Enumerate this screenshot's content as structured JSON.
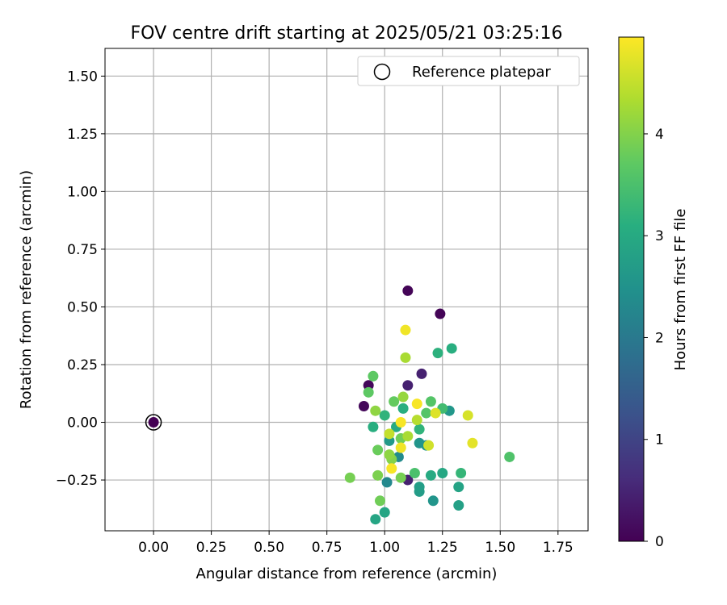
{
  "chart_data": {
    "type": "scatter",
    "title": "FOV centre drift starting at 2025/05/21 03:25:16",
    "xlabel": "Angular distance from reference (arcmin)",
    "ylabel": "Rotation from reference (arcmin)",
    "xlim": [
      -0.21,
      1.88
    ],
    "ylim": [
      -0.47,
      1.62
    ],
    "xticks": [
      0.0,
      0.25,
      0.5,
      0.75,
      1.0,
      1.25,
      1.5,
      1.75
    ],
    "xtick_labels": [
      "0.00",
      "0.25",
      "0.50",
      "0.75",
      "1.00",
      "1.25",
      "1.50",
      "1.75"
    ],
    "yticks": [
      -0.25,
      0.0,
      0.25,
      0.5,
      0.75,
      1.0,
      1.25,
      1.5
    ],
    "ytick_labels": [
      "−0.25",
      "0.00",
      "0.25",
      "0.50",
      "0.75",
      "1.00",
      "1.25",
      "1.50"
    ],
    "grid": true,
    "legend": {
      "position": "top-right",
      "label": "Reference platepar"
    },
    "colorbar": {
      "label": "Hours from first FF file",
      "colormap": "viridis",
      "range": [
        0,
        4.95
      ],
      "ticks": [
        0,
        1,
        2,
        3,
        4
      ],
      "tick_labels": [
        "0",
        "1",
        "2",
        "3",
        "4"
      ]
    },
    "reference_point": {
      "x": 0.0,
      "y": 0.0,
      "c": 0.0
    },
    "points": [
      {
        "x": 1.1,
        "y": 0.57,
        "c": 0.05
      },
      {
        "x": 1.24,
        "y": 0.47,
        "c": 0.05
      },
      {
        "x": 0.93,
        "y": 0.16,
        "c": 0.1
      },
      {
        "x": 0.91,
        "y": 0.07,
        "c": 0.1
      },
      {
        "x": 1.16,
        "y": 0.21,
        "c": 0.45
      },
      {
        "x": 1.1,
        "y": 0.16,
        "c": 0.45
      },
      {
        "x": 1.1,
        "y": -0.25,
        "c": 0.45
      },
      {
        "x": 1.01,
        "y": -0.26,
        "c": 2.3
      },
      {
        "x": 1.06,
        "y": -0.15,
        "c": 2.35
      },
      {
        "x": 1.21,
        "y": -0.34,
        "c": 2.55
      },
      {
        "x": 1.15,
        "y": -0.09,
        "c": 2.55
      },
      {
        "x": 1.18,
        "y": -0.1,
        "c": 2.55
      },
      {
        "x": 1.28,
        "y": 0.05,
        "c": 2.6
      },
      {
        "x": 1.02,
        "y": -0.08,
        "c": 2.65
      },
      {
        "x": 1.15,
        "y": -0.3,
        "c": 2.7
      },
      {
        "x": 1.15,
        "y": -0.28,
        "c": 2.75
      },
      {
        "x": 1.32,
        "y": -0.36,
        "c": 2.8
      },
      {
        "x": 1.32,
        "y": -0.28,
        "c": 2.85
      },
      {
        "x": 1.0,
        "y": -0.39,
        "c": 2.9
      },
      {
        "x": 0.96,
        "y": -0.42,
        "c": 2.9
      },
      {
        "x": 1.25,
        "y": -0.22,
        "c": 2.95
      },
      {
        "x": 1.2,
        "y": -0.23,
        "c": 3.0
      },
      {
        "x": 1.05,
        "y": -0.02,
        "c": 3.0
      },
      {
        "x": 0.95,
        "y": -0.02,
        "c": 3.1
      },
      {
        "x": 1.08,
        "y": 0.06,
        "c": 3.1
      },
      {
        "x": 1.29,
        "y": 0.32,
        "c": 3.1
      },
      {
        "x": 1.23,
        "y": 0.3,
        "c": 3.15
      },
      {
        "x": 1.15,
        "y": -0.03,
        "c": 3.2
      },
      {
        "x": 1.0,
        "y": 0.03,
        "c": 3.2
      },
      {
        "x": 1.33,
        "y": -0.22,
        "c": 3.25
      },
      {
        "x": 1.25,
        "y": 0.06,
        "c": 3.4
      },
      {
        "x": 1.13,
        "y": -0.22,
        "c": 3.5
      },
      {
        "x": 1.54,
        "y": -0.15,
        "c": 3.55
      },
      {
        "x": 1.2,
        "y": 0.09,
        "c": 3.6
      },
      {
        "x": 1.18,
        "y": 0.04,
        "c": 3.6
      },
      {
        "x": 0.95,
        "y": 0.2,
        "c": 3.7
      },
      {
        "x": 0.93,
        "y": 0.13,
        "c": 3.7
      },
      {
        "x": 1.04,
        "y": 0.09,
        "c": 3.75
      },
      {
        "x": 0.97,
        "y": -0.12,
        "c": 3.8
      },
      {
        "x": 1.07,
        "y": -0.07,
        "c": 3.85
      },
      {
        "x": 0.98,
        "y": -0.34,
        "c": 3.85
      },
      {
        "x": 0.85,
        "y": -0.24,
        "c": 3.9
      },
      {
        "x": 1.07,
        "y": -0.24,
        "c": 3.9
      },
      {
        "x": 0.97,
        "y": -0.23,
        "c": 3.95
      },
      {
        "x": 1.03,
        "y": -0.16,
        "c": 4.0
      },
      {
        "x": 1.02,
        "y": -0.14,
        "c": 4.1
      },
      {
        "x": 0.96,
        "y": 0.05,
        "c": 4.1
      },
      {
        "x": 1.08,
        "y": 0.11,
        "c": 4.15
      },
      {
        "x": 1.09,
        "y": 0.28,
        "c": 4.3
      },
      {
        "x": 1.1,
        "y": -0.06,
        "c": 4.3
      },
      {
        "x": 1.14,
        "y": 0.01,
        "c": 4.4
      },
      {
        "x": 1.02,
        "y": -0.05,
        "c": 4.5
      },
      {
        "x": 1.19,
        "y": -0.1,
        "c": 4.6
      },
      {
        "x": 1.36,
        "y": 0.03,
        "c": 4.65
      },
      {
        "x": 1.22,
        "y": 0.04,
        "c": 4.7
      },
      {
        "x": 1.38,
        "y": -0.09,
        "c": 4.75
      },
      {
        "x": 1.09,
        "y": 0.4,
        "c": 4.85
      },
      {
        "x": 1.07,
        "y": -0.11,
        "c": 4.85
      },
      {
        "x": 1.14,
        "y": 0.08,
        "c": 4.9
      },
      {
        "x": 1.03,
        "y": -0.2,
        "c": 4.9
      },
      {
        "x": 1.07,
        "y": 0.0,
        "c": 4.9
      }
    ]
  }
}
